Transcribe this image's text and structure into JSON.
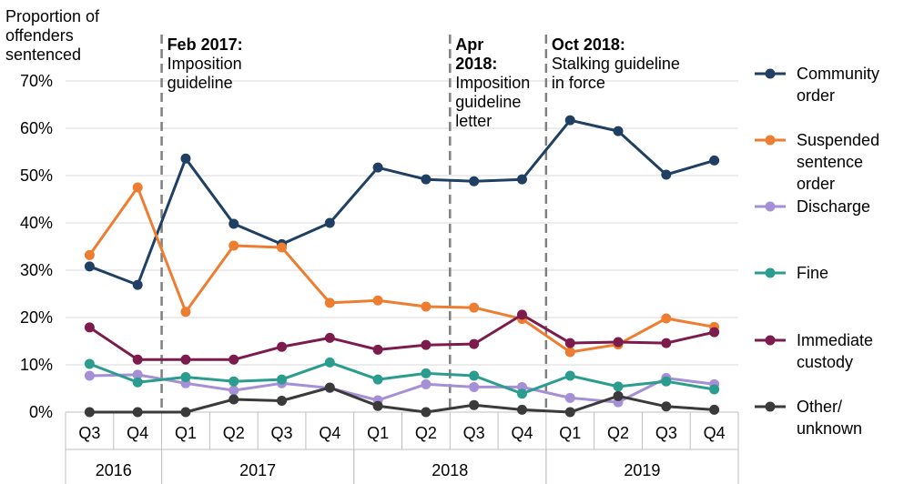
{
  "chart_data": {
    "type": "line",
    "ylabel": [
      "Proportion of",
      "offenders",
      "sentenced"
    ],
    "ylim": [
      0,
      70
    ],
    "yticks": [
      0,
      10,
      20,
      30,
      40,
      50,
      60,
      70
    ],
    "ytick_labels": [
      "0%",
      "10%",
      "20%",
      "30%",
      "40%",
      "50%",
      "60%",
      "70%"
    ],
    "categories": [
      "Q3",
      "Q4",
      "Q1",
      "Q2",
      "Q3",
      "Q4",
      "Q1",
      "Q2",
      "Q3",
      "Q4",
      "Q1",
      "Q2",
      "Q3",
      "Q4"
    ],
    "years": [
      {
        "label": "2016",
        "start": 0,
        "end": 1
      },
      {
        "label": "2017",
        "start": 2,
        "end": 5
      },
      {
        "label": "2018",
        "start": 6,
        "end": 9
      },
      {
        "label": "2019",
        "start": 10,
        "end": 13
      }
    ],
    "grid": true,
    "legend_position": "right",
    "series": [
      {
        "name": [
          "Community",
          "order"
        ],
        "color": "#1f3f63",
        "values": [
          30.8,
          26.9,
          53.6,
          39.8,
          35.5,
          40.0,
          51.7,
          49.2,
          48.8,
          49.2,
          61.7,
          59.4,
          50.2,
          53.2
        ]
      },
      {
        "name": [
          "Suspended",
          "sentence",
          "order"
        ],
        "color": "#ed7d31",
        "values": [
          33.2,
          47.5,
          21.2,
          35.2,
          34.8,
          23.1,
          23.6,
          22.3,
          22.1,
          19.7,
          12.7,
          14.3,
          19.8,
          18.0
        ]
      },
      {
        "name": [
          "Discharge"
        ],
        "color": "#a58fd6",
        "values": [
          7.7,
          7.9,
          6.1,
          4.6,
          6.1,
          5.1,
          2.5,
          5.9,
          5.3,
          5.3,
          3.0,
          2.1,
          7.2,
          5.9
        ]
      },
      {
        "name": [
          "Fine"
        ],
        "color": "#2a9d8f",
        "values": [
          10.2,
          6.3,
          7.4,
          6.5,
          6.9,
          10.5,
          6.9,
          8.2,
          7.7,
          3.9,
          7.7,
          5.4,
          6.5,
          4.8
        ]
      },
      {
        "name": [
          "Immediate",
          "custody"
        ],
        "color": "#7b1c4d",
        "values": [
          17.9,
          11.1,
          11.1,
          11.1,
          13.8,
          15.7,
          13.2,
          14.2,
          14.4,
          20.6,
          14.6,
          14.8,
          14.6,
          16.9
        ]
      },
      {
        "name": [
          "Other/",
          "unknown"
        ],
        "color": "#3a3a3a",
        "values": [
          0.0,
          0.0,
          0.0,
          2.7,
          2.4,
          5.2,
          1.3,
          0.0,
          1.5,
          0.5,
          0.0,
          3.4,
          1.2,
          0.5
        ]
      }
    ],
    "annotations": [
      {
        "after_index": 1,
        "title": "Feb 2017:",
        "text": [
          "Imposition",
          "guideline"
        ]
      },
      {
        "after_index": 7,
        "title": "Apr",
        "title2": "2018:",
        "text": [
          "Imposition",
          "guideline",
          "letter"
        ]
      },
      {
        "after_index": 9,
        "title": "Oct 2018:",
        "text": [
          "Stalking guideline",
          "in force"
        ]
      }
    ]
  }
}
